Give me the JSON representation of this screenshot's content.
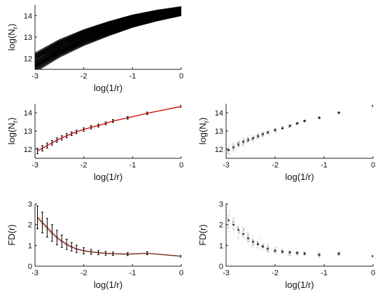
{
  "chart_data": [
    {
      "id": "A",
      "type": "line",
      "description_style": "ensemble",
      "xlabel": "log(1/r)",
      "ylabel_base": "log(N",
      "ylabel_sub": "r",
      "ylabel_end": ")",
      "xlim": [
        -3,
        0
      ],
      "ylim": [
        11.5,
        14.5
      ],
      "xticks": [
        -3,
        -2,
        -1,
        0
      ],
      "yticks": [
        12,
        13,
        14
      ],
      "xticklabels": [
        "-3",
        "-2",
        "-1",
        "0"
      ],
      "yticklabels": [
        "12",
        "13",
        "14"
      ],
      "series_color": "#000000",
      "ensemble": {
        "x": [
          -3.0,
          -2.5,
          -2.0,
          -1.5,
          -1.0,
          -0.5,
          0.0
        ],
        "mean": [
          11.95,
          12.6,
          13.1,
          13.5,
          13.85,
          14.1,
          14.3
        ],
        "offset_start": [
          -0.55,
          0.3
        ],
        "offset_end": [
          -0.3,
          0.12
        ],
        "count": 40
      }
    },
    {
      "id": "B",
      "type": "line",
      "xlabel": "log(1/r)",
      "ylabel_base": "log(N",
      "ylabel_sub": "r",
      "ylabel_end": ")",
      "xlim": [
        -3,
        0
      ],
      "ylim": [
        11.5,
        14.5
      ],
      "xticks": [
        -3,
        -2,
        -1,
        0
      ],
      "yticks": [
        12,
        13,
        14
      ],
      "xticklabels": [
        "-3",
        "-2",
        "-1",
        "0"
      ],
      "yticklabels": [
        "12",
        "13",
        "14"
      ],
      "line_color": "#d40000",
      "x": [
        -2.95,
        -2.85,
        -2.75,
        -2.65,
        -2.55,
        -2.45,
        -2.35,
        -2.25,
        -2.15,
        -2.0,
        -1.85,
        -1.7,
        -1.55,
        -1.4,
        -1.1,
        -0.7,
        0.0
      ],
      "y": [
        11.9,
        12.05,
        12.2,
        12.35,
        12.5,
        12.62,
        12.74,
        12.85,
        12.95,
        13.08,
        13.2,
        13.3,
        13.42,
        13.55,
        13.72,
        13.97,
        14.35
      ],
      "err": [
        0.15,
        0.15,
        0.14,
        0.13,
        0.12,
        0.12,
        0.11,
        0.1,
        0.1,
        0.09,
        0.09,
        0.08,
        0.08,
        0.08,
        0.07,
        0.07,
        0.06
      ]
    },
    {
      "id": "C",
      "type": "scatter",
      "xlabel": "log(1/r)",
      "ylabel_base": "log(N",
      "ylabel_sub": "r",
      "ylabel_end": ")",
      "xlim": [
        -3,
        0
      ],
      "ylim": [
        11.5,
        14.5
      ],
      "xticks": [
        -3,
        -2,
        -1,
        0
      ],
      "yticks": [
        12,
        13,
        14
      ],
      "xticklabels": [
        "-3",
        "-2",
        "-1",
        "0"
      ],
      "yticklabels": [
        "12",
        "13",
        "14"
      ],
      "x": [
        -2.95,
        -2.85,
        -2.75,
        -2.65,
        -2.55,
        -2.45,
        -2.35,
        -2.25,
        -2.15,
        -2.0,
        -1.85,
        -1.7,
        -1.55,
        -1.4,
        -1.1,
        -0.7,
        0.0
      ],
      "y": [
        11.95,
        12.1,
        12.25,
        12.4,
        12.5,
        12.6,
        12.72,
        12.82,
        12.92,
        13.05,
        13.15,
        13.28,
        13.42,
        13.55,
        13.72,
        14.0,
        14.38
      ],
      "spread": [
        0.35,
        0.33,
        0.3,
        0.28,
        0.26,
        0.24,
        0.22,
        0.2,
        0.18,
        0.17,
        0.16,
        0.15,
        0.14,
        0.13,
        0.12,
        0.12,
        0.1
      ]
    },
    {
      "id": "D",
      "type": "line",
      "xlabel": "log(1/r)",
      "ylabel": "FD(r)",
      "xlim": [
        -3,
        0
      ],
      "ylim": [
        0,
        3
      ],
      "xticks": [
        -3,
        -2,
        -1,
        0
      ],
      "yticks": [
        0,
        1,
        2,
        3
      ],
      "xticklabels": [
        "-3",
        "-2",
        "-1",
        "0"
      ],
      "yticklabels": [
        "0",
        "1",
        "2",
        "3"
      ],
      "line_color": "#6b2a10",
      "band_color": "#f4d6d6",
      "x": [
        -2.95,
        -2.85,
        -2.75,
        -2.65,
        -2.55,
        -2.45,
        -2.35,
        -2.25,
        -2.15,
        -2.0,
        -1.85,
        -1.7,
        -1.55,
        -1.4,
        -1.1,
        -0.7,
        0.0
      ],
      "y": [
        2.35,
        2.1,
        1.85,
        1.6,
        1.38,
        1.2,
        1.05,
        0.93,
        0.83,
        0.74,
        0.69,
        0.65,
        0.62,
        0.6,
        0.58,
        0.62,
        0.48
      ],
      "err": [
        0.55,
        0.5,
        0.45,
        0.4,
        0.35,
        0.3,
        0.25,
        0.2,
        0.18,
        0.15,
        0.12,
        0.1,
        0.09,
        0.08,
        0.07,
        0.07,
        0.05
      ]
    },
    {
      "id": "E",
      "type": "scatter",
      "xlabel": "log(1/r)",
      "ylabel": "FD(r)",
      "xlim": [
        -3,
        0
      ],
      "ylim": [
        0,
        3
      ],
      "xticks": [
        -3,
        -2,
        -1,
        0
      ],
      "yticks": [
        0,
        1,
        2,
        3
      ],
      "xticklabels": [
        "-3",
        "-2",
        "-1",
        "0"
      ],
      "yticklabels": [
        "0",
        "1",
        "2",
        "3"
      ],
      "x": [
        -2.95,
        -2.85,
        -2.75,
        -2.65,
        -2.55,
        -2.45,
        -2.35,
        -2.25,
        -2.15,
        -2.0,
        -1.85,
        -1.7,
        -1.55,
        -1.4,
        -1.1,
        -0.7,
        0.0
      ],
      "y": [
        2.2,
        2.0,
        1.75,
        1.55,
        1.35,
        1.18,
        1.05,
        0.95,
        0.85,
        0.75,
        0.7,
        0.66,
        0.63,
        0.6,
        0.55,
        0.6,
        0.48
      ],
      "spread": [
        0.75,
        0.65,
        0.6,
        0.5,
        0.45,
        0.4,
        0.35,
        0.3,
        0.28,
        0.25,
        0.22,
        0.2,
        0.18,
        0.16,
        0.2,
        0.22,
        0.08
      ]
    }
  ]
}
